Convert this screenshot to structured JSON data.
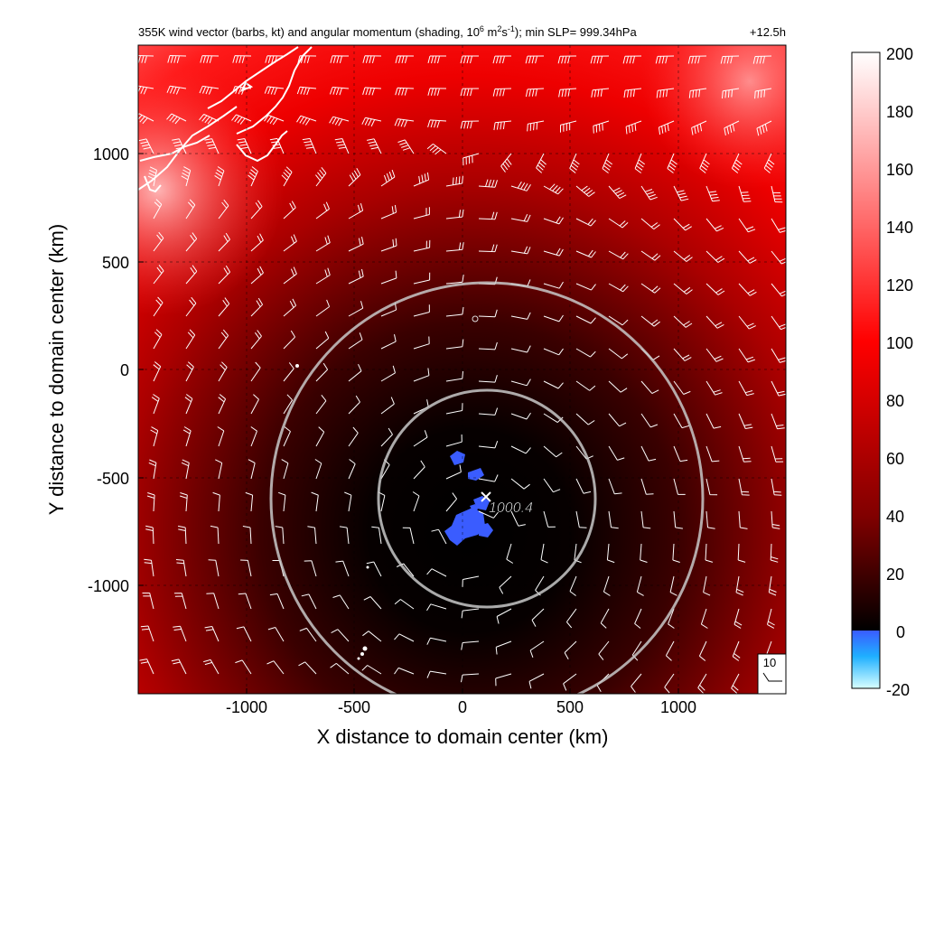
{
  "figure": {
    "title_main": "355K wind vector (barbs, kt) and angular momentum (shading, 10",
    "title_exp1": "6",
    "title_mid": " m",
    "title_exp2": "2",
    "title_mid2": "s",
    "title_exp3": "-1",
    "title_tail": "); min SLP= 999.34hPa",
    "time_label": "+12.5h",
    "ref_barb_label": "10"
  },
  "chart_data": {
    "type": "heatmap",
    "title": "355K wind vector (barbs, kt) and angular momentum (shading, 10^6 m^2s^-1); min SLP= 999.34hPa",
    "time": "+12.5h",
    "xlabel": "X distance to domain center (km)",
    "ylabel": "Y distance to domain center (km)",
    "xlim": [
      -1500,
      1500
    ],
    "ylim": [
      -1500,
      1500
    ],
    "x_ticks": [
      -1000,
      -500,
      0,
      500,
      1000
    ],
    "y_ticks": [
      1000,
      500,
      0,
      -500,
      -1000
    ],
    "x_tick_labels": [
      "-1000",
      "-500",
      "0",
      "500",
      "1000"
    ],
    "y_tick_labels": [
      "1000",
      "500",
      "0",
      "-500",
      "-1000"
    ],
    "grid": true,
    "colorbar": {
      "range": [
        -20,
        200
      ],
      "ticks": [
        200,
        180,
        160,
        140,
        120,
        100,
        80,
        60,
        40,
        20,
        0,
        -20
      ],
      "tick_labels": [
        "200",
        "180",
        "160",
        "140",
        "120",
        "100",
        "80",
        "60",
        "40",
        "20",
        "0",
        "-20"
      ],
      "colors": {
        "white": "#ffffff",
        "red": "#ff0000",
        "black": "#000000",
        "blue": "#3a5cff",
        "cyan": "#00ffff"
      }
    },
    "storm_center": {
      "x": 110,
      "y": -590,
      "slp_label": "1000.4"
    },
    "range_rings_km": [
      500,
      1000
    ],
    "reference_barb": {
      "speed_kt": 10
    },
    "coastline_color": "#ffffff"
  }
}
